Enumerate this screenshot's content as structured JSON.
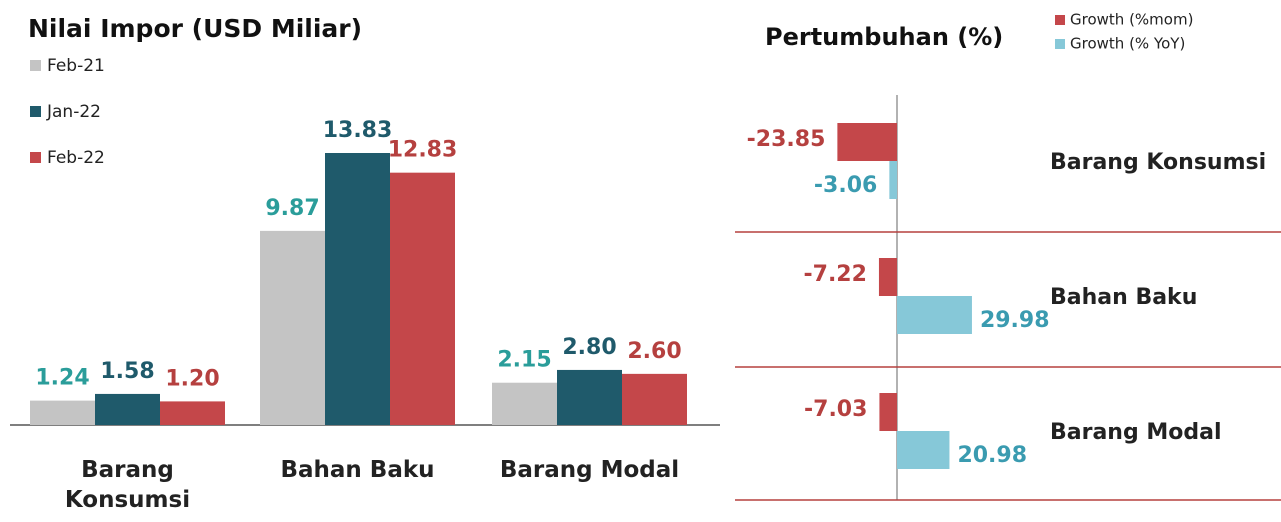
{
  "chart_data": [
    {
      "type": "bar",
      "title": "Nilai Impor (USD Miliar)",
      "categories": [
        "Barang Konsumsi",
        "Bahan Baku",
        "Barang Modal"
      ],
      "series": [
        {
          "name": "Feb-21",
          "color": "#c4c4c4",
          "label_color": "#2a9d9a",
          "values": [
            1.24,
            9.87,
            2.15
          ],
          "value_labels": [
            "1.24",
            "9.87",
            "2.15"
          ]
        },
        {
          "name": "Jan-22",
          "color": "#1f5a6b",
          "label_color": "#1f5a6b",
          "values": [
            1.58,
            13.83,
            2.8
          ],
          "value_labels": [
            "1.58",
            "13.83",
            "2.80"
          ]
        },
        {
          "name": "Feb-22",
          "color": "#c4474a",
          "label_color": "#b5403f",
          "values": [
            1.2,
            12.83,
            2.6
          ],
          "value_labels": [
            "1.20",
            "12.83",
            "2.60"
          ]
        }
      ]
    },
    {
      "type": "hbar",
      "title": "Pertumbuhan  (%)",
      "categories": [
        "Barang Konsumsi",
        "Bahan Baku",
        "Barang Modal"
      ],
      "series": [
        {
          "name": "Growth (%mom)",
          "color": "#c4474a",
          "label_color": "#b5403f",
          "values": [
            -23.85,
            -7.22,
            -7.03
          ]
        },
        {
          "name": "Growth (% YoY)",
          "color": "#86c8d8",
          "label_color": "#3a9bb0",
          "values": [
            -3.06,
            29.98,
            20.98
          ]
        }
      ]
    }
  ]
}
